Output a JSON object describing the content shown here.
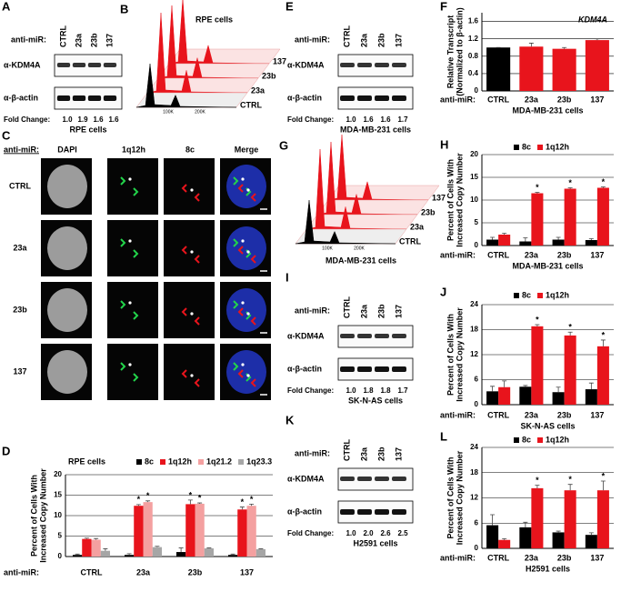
{
  "blots": [
    {
      "label": "A",
      "anti_miR_label": "anti-miR:",
      "lanes": [
        "CTRL",
        "23a",
        "23b",
        "137"
      ],
      "rows": [
        "α-KDM4A",
        "α-β-actin"
      ],
      "fold_change_label": "Fold Change:",
      "fold_change": [
        "1.0",
        "1.9",
        "1.6",
        "1.6"
      ],
      "cell_line": "RPE cells"
    },
    {
      "label": "E",
      "anti_miR_label": "anti-miR:",
      "lanes": [
        "CTRL",
        "23a",
        "23b",
        "137"
      ],
      "rows": [
        "α-KDM4A",
        "α-β-actin"
      ],
      "fold_change_label": "Fold Change:",
      "fold_change": [
        "1.0",
        "1.6",
        "1.6",
        "1.7"
      ],
      "cell_line": "MDA-MB-231 cells"
    },
    {
      "label": "I",
      "anti_miR_label": "anti-miR:",
      "lanes": [
        "CTRL",
        "23a",
        "23b",
        "137"
      ],
      "rows": [
        "α-KDM4A",
        "α-β-actin"
      ],
      "fold_change_label": "Fold Change:",
      "fold_change": [
        "1.0",
        "1.8",
        "1.8",
        "1.7"
      ],
      "cell_line": "SK-N-AS cells"
    },
    {
      "label": "K",
      "anti_miR_label": "anti-miR:",
      "lanes": [
        "CTRL",
        "23a",
        "23b",
        "137"
      ],
      "rows": [
        "α-KDM4A",
        "α-β-actin"
      ],
      "fold_change_label": "Fold Change:",
      "fold_change": [
        "1.0",
        "2.0",
        "2.6",
        "2.5"
      ],
      "cell_line": "H2591 cells"
    }
  ],
  "histograms": [
    {
      "label": "B",
      "title": "RPE cells",
      "layers": [
        "137",
        "23b",
        "23a",
        "CTRL"
      ],
      "colors": [
        "#e8141c",
        "#e8141c",
        "#e8141c",
        "#000000"
      ],
      "x_ticks": [
        "100K",
        "200K"
      ]
    },
    {
      "label": "G",
      "title": "MDA-MB-231 cells",
      "layers": [
        "137",
        "23b",
        "23a",
        "CTRL"
      ],
      "colors": [
        "#e8141c",
        "#e8141c",
        "#e8141c",
        "#000000"
      ],
      "x_ticks": [
        "100K",
        "200K"
      ]
    }
  ],
  "microscopy": {
    "label": "C",
    "anti_miR_label": "anti-miR:",
    "columns": [
      "DAPI",
      "1q12h",
      "8c",
      "Merge"
    ],
    "rows": [
      "CTRL",
      "23a",
      "23b",
      "137"
    ]
  },
  "chart_data": [
    {
      "panel_label": "D",
      "type": "bar",
      "title": "RPE cells",
      "ylabel": [
        "Percent of Cells With",
        "Increased Copy Number"
      ],
      "xlabel": "anti-miR:",
      "categories": [
        "CTRL",
        "23a",
        "23b",
        "137"
      ],
      "ylim": [
        0,
        20
      ],
      "yticks": [
        0,
        5,
        10,
        15,
        20
      ],
      "grid": true,
      "legend": "top-right",
      "series": [
        {
          "name": "8c",
          "color": "#000000",
          "values": [
            0.4,
            0.4,
            1.1,
            0.4
          ],
          "errors": [
            0.2,
            0.3,
            1.0,
            0.2
          ]
        },
        {
          "name": "1q12h",
          "color": "#e8141c",
          "values": [
            4.3,
            12.4,
            12.8,
            11.5
          ],
          "errors": [
            0.2,
            0.3,
            1.0,
            0.6
          ],
          "markers": [
            null,
            "*",
            "*",
            "*"
          ]
        },
        {
          "name": "1q21.2",
          "color": "#f4a0a0",
          "values": [
            4.1,
            13.3,
            12.9,
            12.4
          ],
          "errors": [
            0.3,
            0.3,
            0.2,
            0.4
          ],
          "markers": [
            null,
            "*",
            "*",
            "*"
          ]
        },
        {
          "name": "1q23.3",
          "color": "#a6a6a6",
          "values": [
            1.4,
            2.3,
            2.0,
            1.8
          ],
          "errors": [
            0.5,
            0.2,
            0.1,
            0.1
          ]
        }
      ]
    },
    {
      "panel_label": "F",
      "type": "bar",
      "title": "KDM4A",
      "ylabel": [
        "Relative Transcript",
        "(Normalized to β-actin)"
      ],
      "xlabel": "anti-miR:",
      "cell_line": "MDA-MB-231 cells",
      "categories": [
        "CTRL",
        "23a",
        "23b",
        "137"
      ],
      "ylim": [
        0,
        1.8
      ],
      "yticks": [
        0,
        0.4,
        0.8,
        1.2,
        1.6
      ],
      "grid": true,
      "series": [
        {
          "colors": [
            "#000000",
            "#e8141c",
            "#e8141c",
            "#e8141c"
          ],
          "values": [
            1.0,
            1.02,
            0.97,
            1.17
          ],
          "errors": [
            0,
            0.08,
            0.03,
            0.03
          ]
        }
      ]
    },
    {
      "panel_label": "H",
      "type": "bar",
      "ylabel": [
        "Percent of Cells With",
        "Increased Copy Number"
      ],
      "xlabel": "anti-miR:",
      "cell_line": "MDA-MB-231 cells",
      "categories": [
        "CTRL",
        "23a",
        "23b",
        "137"
      ],
      "ylim": [
        0,
        20
      ],
      "yticks": [
        0,
        5,
        10,
        15,
        20
      ],
      "grid": true,
      "legend": "top-right",
      "series": [
        {
          "name": "8c",
          "color": "#000000",
          "values": [
            1.3,
            0.9,
            1.3,
            1.2
          ],
          "errors": [
            0.5,
            0.8,
            0.5,
            0.3
          ]
        },
        {
          "name": "1q12h",
          "color": "#e8141c",
          "values": [
            2.4,
            11.5,
            12.5,
            12.7
          ],
          "errors": [
            0.3,
            0.2,
            0.2,
            0.2
          ],
          "markers": [
            null,
            "*",
            "*",
            "*"
          ]
        }
      ]
    },
    {
      "panel_label": "J",
      "type": "bar",
      "ylabel": [
        "Percent of Cells With",
        "Increased Copy Number"
      ],
      "xlabel": "anti-miR:",
      "cell_line": "SK-N-AS cells",
      "categories": [
        "CTRL",
        "23a",
        "23b",
        "137"
      ],
      "ylim": [
        0,
        24
      ],
      "yticks": [
        0,
        6,
        12,
        18,
        24
      ],
      "grid": true,
      "legend": "top-right",
      "series": [
        {
          "name": "8c",
          "color": "#000000",
          "values": [
            3.2,
            4.3,
            3.0,
            3.7
          ],
          "errors": [
            1.2,
            0.3,
            1.2,
            1.5
          ]
        },
        {
          "name": "1q12h",
          "color": "#e8141c",
          "values": [
            4.2,
            18.8,
            16.6,
            14.0
          ],
          "errors": [
            1.5,
            0.4,
            0.8,
            1.5
          ],
          "markers": [
            null,
            "*",
            "*",
            "*"
          ]
        }
      ]
    },
    {
      "panel_label": "L",
      "type": "bar",
      "ylabel": [
        "Percent of Cells With",
        "Increased Copy Number"
      ],
      "xlabel": "anti-miR:",
      "cell_line": "H2591 cells",
      "categories": [
        "CTRL",
        "23a",
        "23b",
        "137"
      ],
      "ylim": [
        0,
        24
      ],
      "yticks": [
        0,
        6,
        12,
        18,
        24
      ],
      "grid": true,
      "legend": "top-right",
      "series": [
        {
          "name": "8c",
          "color": "#000000",
          "values": [
            5.5,
            5.0,
            3.8,
            3.2
          ],
          "errors": [
            2.5,
            1.2,
            0.3,
            0.5
          ]
        },
        {
          "name": "1q12h",
          "color": "#e8141c",
          "values": [
            2.0,
            14.3,
            13.8,
            13.8
          ],
          "errors": [
            0.3,
            0.7,
            1.4,
            2.2
          ],
          "markers": [
            null,
            "*",
            "*",
            "*"
          ]
        }
      ]
    }
  ]
}
